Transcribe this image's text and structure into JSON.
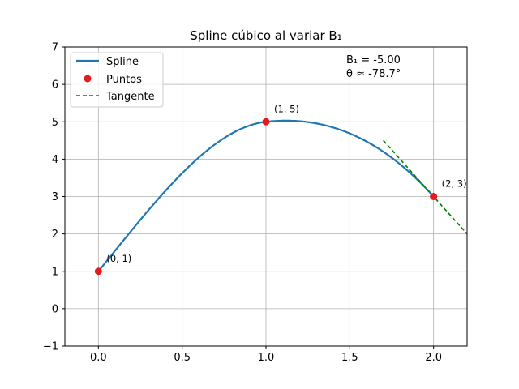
{
  "chart_data": {
    "type": "line",
    "title": "Spline cúbico al variar B₁",
    "xlabel": "",
    "ylabel": "",
    "xlim": [
      -0.2,
      2.2
    ],
    "ylim": [
      -1,
      7
    ],
    "x_ticks": [
      0.0,
      0.5,
      1.0,
      1.5,
      2.0
    ],
    "x_tick_labels": [
      "0.0",
      "0.5",
      "1.0",
      "1.5",
      "2.0"
    ],
    "y_ticks": [
      -1,
      0,
      1,
      2,
      3,
      4,
      5,
      6,
      7
    ],
    "y_tick_labels": [
      "−1",
      "0",
      "1",
      "2",
      "3",
      "4",
      "5",
      "6",
      "7"
    ],
    "grid": true,
    "legend_position": "top-left",
    "series": [
      {
        "name": "Spline",
        "style": "solid-line",
        "color": "#1f77b4",
        "segments": [
          {
            "x_from": 0,
            "x_to": 1,
            "knots": [
              [
                0,
                1
              ],
              [
                1,
                5
              ]
            ],
            "slopes": [
              5.5,
              0.5
            ]
          },
          {
            "x_from": 1,
            "x_to": 2,
            "knots": [
              [
                1,
                5
              ],
              [
                2,
                3
              ]
            ],
            "slopes": [
              0.5,
              -5.0
            ]
          }
        ]
      },
      {
        "name": "Puntos",
        "style": "markers",
        "color": "#e41a1c",
        "points": [
          [
            0,
            1
          ],
          [
            1,
            5
          ],
          [
            2,
            3
          ]
        ]
      },
      {
        "name": "Tangente",
        "style": "dashed-line",
        "color": "#008000",
        "points": [
          [
            1.7,
            4.5
          ],
          [
            2.2,
            2.0
          ]
        ]
      }
    ],
    "annotations": [
      {
        "text": "(0, 1)",
        "x": 0,
        "y": 1
      },
      {
        "text": "(1, 5)",
        "x": 1,
        "y": 5
      },
      {
        "text": "(2, 3)",
        "x": 2,
        "y": 3
      }
    ],
    "info_text": [
      "B₁ = -5.00",
      "θ ≈ -78.7°"
    ]
  },
  "colors": {
    "spline": "#1f77b4",
    "points": "#e41a1c",
    "tangent": "#008000"
  }
}
